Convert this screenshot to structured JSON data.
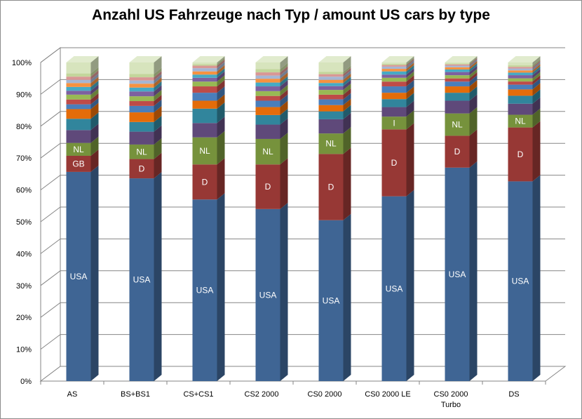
{
  "chart_data": {
    "type": "bar",
    "stacked": true,
    "percent_stacked": true,
    "three_d": true,
    "title": "Anzahl US Fahrzeuge nach Typ / amount US cars by type",
    "xlabel": "",
    "ylabel": "",
    "ylim": [
      0,
      100
    ],
    "yticks": [
      "0%",
      "10%",
      "20%",
      "30%",
      "40%",
      "50%",
      "60%",
      "70%",
      "80%",
      "90%",
      "100%"
    ],
    "grid": true,
    "legend": "none",
    "categories": [
      [
        "AS"
      ],
      [
        "BS+BS1"
      ],
      [
        "CS+CS1"
      ],
      [
        "CS2 2000"
      ],
      [
        "CS0 2000"
      ],
      [
        "CS0 2000 LE"
      ],
      [
        "CS0 2000",
        "Turbo"
      ],
      [
        "DS"
      ]
    ],
    "bars": [
      {
        "segments": [
          {
            "label": "USA",
            "value": 65,
            "color": "#3f6594"
          },
          {
            "label": "GB",
            "value": 5,
            "color": "#973835"
          },
          {
            "label": "NL",
            "value": 4,
            "color": "#76923c"
          },
          {
            "label": "",
            "value": 4,
            "color": "#5f497a"
          },
          {
            "label": "",
            "value": 3.5,
            "color": "#31859c"
          },
          {
            "label": "",
            "value": 3,
            "color": "#e46c0a"
          },
          {
            "label": "",
            "value": 1.5,
            "color": "#4a7ebb"
          },
          {
            "label": "",
            "value": 1.5,
            "color": "#be4b48"
          },
          {
            "label": "",
            "value": 1.5,
            "color": "#98b954"
          },
          {
            "label": "",
            "value": 1.2,
            "color": "#7d60a0"
          },
          {
            "label": "",
            "value": 1.2,
            "color": "#46aac5"
          },
          {
            "label": "",
            "value": 1.2,
            "color": "#f69240"
          },
          {
            "label": "",
            "value": 1.0,
            "color": "#a5b6d4"
          },
          {
            "label": "",
            "value": 1.0,
            "color": "#d99795"
          },
          {
            "label": "",
            "value": 1.0,
            "color": "#c3d69b"
          },
          {
            "label": "",
            "value": 3.4,
            "color": "#d7e4bd"
          }
        ]
      },
      {
        "segments": [
          {
            "label": "USA",
            "value": 63,
            "color": "#3f6594"
          },
          {
            "label": "D",
            "value": 6,
            "color": "#973835"
          },
          {
            "label": "NL",
            "value": 4.5,
            "color": "#76923c"
          },
          {
            "label": "",
            "value": 4,
            "color": "#5f497a"
          },
          {
            "label": "",
            "value": 3,
            "color": "#31859c"
          },
          {
            "label": "",
            "value": 3,
            "color": "#e46c0a"
          },
          {
            "label": "",
            "value": 2,
            "color": "#4a7ebb"
          },
          {
            "label": "",
            "value": 1.5,
            "color": "#be4b48"
          },
          {
            "label": "",
            "value": 1.5,
            "color": "#98b954"
          },
          {
            "label": "",
            "value": 1.5,
            "color": "#7d60a0"
          },
          {
            "label": "",
            "value": 1.2,
            "color": "#46aac5"
          },
          {
            "label": "",
            "value": 1.2,
            "color": "#f69240"
          },
          {
            "label": "",
            "value": 1.0,
            "color": "#a5b6d4"
          },
          {
            "label": "",
            "value": 1.0,
            "color": "#d99795"
          },
          {
            "label": "",
            "value": 1.0,
            "color": "#c3d69b"
          },
          {
            "label": "",
            "value": 3.6,
            "color": "#d7e4bd"
          }
        ]
      },
      {
        "segments": [
          {
            "label": "USA",
            "value": 57,
            "color": "#3f6594"
          },
          {
            "label": "D",
            "value": 11,
            "color": "#973835"
          },
          {
            "label": "NL",
            "value": 8.5,
            "color": "#76923c"
          },
          {
            "label": "",
            "value": 4.5,
            "color": "#5f497a"
          },
          {
            "label": "",
            "value": 4.5,
            "color": "#31859c"
          },
          {
            "label": "",
            "value": 2.5,
            "color": "#e46c0a"
          },
          {
            "label": "",
            "value": 2.5,
            "color": "#4a7ebb"
          },
          {
            "label": "",
            "value": 2,
            "color": "#be4b48"
          },
          {
            "label": "",
            "value": 1.5,
            "color": "#98b954"
          },
          {
            "label": "",
            "value": 1.2,
            "color": "#7d60a0"
          },
          {
            "label": "",
            "value": 1.0,
            "color": "#46aac5"
          },
          {
            "label": "",
            "value": 1.0,
            "color": "#f69240"
          },
          {
            "label": "",
            "value": 1.0,
            "color": "#a5b6d4"
          },
          {
            "label": "",
            "value": 0.8,
            "color": "#d99795"
          },
          {
            "label": "",
            "value": 0.5,
            "color": "#c3d69b"
          },
          {
            "label": "",
            "value": 0.5,
            "color": "#d7e4bd"
          }
        ]
      },
      {
        "segments": [
          {
            "label": "USA",
            "value": 54,
            "color": "#3f6594"
          },
          {
            "label": "D",
            "value": 14,
            "color": "#973835"
          },
          {
            "label": "NL",
            "value": 8,
            "color": "#76923c"
          },
          {
            "label": "",
            "value": 4.5,
            "color": "#5f497a"
          },
          {
            "label": "",
            "value": 3,
            "color": "#31859c"
          },
          {
            "label": "",
            "value": 2.5,
            "color": "#e46c0a"
          },
          {
            "label": "",
            "value": 2,
            "color": "#4a7ebb"
          },
          {
            "label": "",
            "value": 1.5,
            "color": "#be4b48"
          },
          {
            "label": "",
            "value": 1.5,
            "color": "#98b954"
          },
          {
            "label": "",
            "value": 1.5,
            "color": "#7d60a0"
          },
          {
            "label": "",
            "value": 1.2,
            "color": "#46aac5"
          },
          {
            "label": "",
            "value": 1.2,
            "color": "#f69240"
          },
          {
            "label": "",
            "value": 1.0,
            "color": "#a5b6d4"
          },
          {
            "label": "",
            "value": 1.0,
            "color": "#d99795"
          },
          {
            "label": "",
            "value": 1.0,
            "color": "#c3d69b"
          },
          {
            "label": "",
            "value": 2.1,
            "color": "#d7e4bd"
          }
        ]
      },
      {
        "segments": [
          {
            "label": "USA",
            "value": 51,
            "color": "#3f6594"
          },
          {
            "label": "D",
            "value": 21,
            "color": "#973835"
          },
          {
            "label": "NL",
            "value": 6.5,
            "color": "#76923c"
          },
          {
            "label": "",
            "value": 4.5,
            "color": "#5f497a"
          },
          {
            "label": "",
            "value": 2.5,
            "color": "#31859c"
          },
          {
            "label": "",
            "value": 2,
            "color": "#e46c0a"
          },
          {
            "label": "",
            "value": 1.8,
            "color": "#4a7ebb"
          },
          {
            "label": "",
            "value": 1.5,
            "color": "#be4b48"
          },
          {
            "label": "",
            "value": 1.5,
            "color": "#98b954"
          },
          {
            "label": "",
            "value": 1.2,
            "color": "#7d60a0"
          },
          {
            "label": "",
            "value": 1.0,
            "color": "#46aac5"
          },
          {
            "label": "",
            "value": 1.0,
            "color": "#f69240"
          },
          {
            "label": "",
            "value": 1.0,
            "color": "#a5b6d4"
          },
          {
            "label": "",
            "value": 0.8,
            "color": "#d99795"
          },
          {
            "label": "",
            "value": 0.7,
            "color": "#c3d69b"
          },
          {
            "label": "",
            "value": 3.0,
            "color": "#d7e4bd"
          }
        ]
      },
      {
        "segments": [
          {
            "label": "USA",
            "value": 58,
            "color": "#3f6594"
          },
          {
            "label": "D",
            "value": 21,
            "color": "#973835"
          },
          {
            "label": "I",
            "value": 4,
            "color": "#76923c"
          },
          {
            "label": "",
            "value": 3,
            "color": "#5f497a"
          },
          {
            "label": "",
            "value": 2.5,
            "color": "#31859c"
          },
          {
            "label": "",
            "value": 2,
            "color": "#e46c0a"
          },
          {
            "label": "",
            "value": 2,
            "color": "#4a7ebb"
          },
          {
            "label": "",
            "value": 1.5,
            "color": "#be4b48"
          },
          {
            "label": "",
            "value": 1.2,
            "color": "#98b954"
          },
          {
            "label": "",
            "value": 1.0,
            "color": "#7d60a0"
          },
          {
            "label": "",
            "value": 1.0,
            "color": "#46aac5"
          },
          {
            "label": "",
            "value": 0.8,
            "color": "#f69240"
          },
          {
            "label": "",
            "value": 0.7,
            "color": "#a5b6d4"
          },
          {
            "label": "",
            "value": 0.5,
            "color": "#d99795"
          },
          {
            "label": "",
            "value": 0.4,
            "color": "#c3d69b"
          },
          {
            "label": "",
            "value": 0.4,
            "color": "#d7e4bd"
          }
        ]
      },
      {
        "segments": [
          {
            "label": "USA",
            "value": 67,
            "color": "#3f6594"
          },
          {
            "label": "D",
            "value": 10,
            "color": "#973835"
          },
          {
            "label": "NL",
            "value": 7,
            "color": "#76923c"
          },
          {
            "label": "",
            "value": 4,
            "color": "#5f497a"
          },
          {
            "label": "",
            "value": 2.5,
            "color": "#31859c"
          },
          {
            "label": "",
            "value": 2,
            "color": "#e46c0a"
          },
          {
            "label": "",
            "value": 1.5,
            "color": "#4a7ebb"
          },
          {
            "label": "",
            "value": 1.0,
            "color": "#be4b48"
          },
          {
            "label": "",
            "value": 1.0,
            "color": "#98b954"
          },
          {
            "label": "",
            "value": 1.0,
            "color": "#7d60a0"
          },
          {
            "label": "",
            "value": 0.8,
            "color": "#46aac5"
          },
          {
            "label": "",
            "value": 0.7,
            "color": "#f69240"
          },
          {
            "label": "",
            "value": 0.5,
            "color": "#a5b6d4"
          },
          {
            "label": "",
            "value": 0.4,
            "color": "#d99795"
          },
          {
            "label": "",
            "value": 0.3,
            "color": "#c3d69b"
          },
          {
            "label": "",
            "value": 0.3,
            "color": "#d7e4bd"
          }
        ]
      },
      {
        "segments": [
          {
            "label": "USA",
            "value": 63,
            "color": "#3f6594"
          },
          {
            "label": "D",
            "value": 17,
            "color": "#973835"
          },
          {
            "label": "NL",
            "value": 4,
            "color": "#76923c"
          },
          {
            "label": "",
            "value": 3.5,
            "color": "#5f497a"
          },
          {
            "label": "",
            "value": 2.5,
            "color": "#31859c"
          },
          {
            "label": "",
            "value": 2,
            "color": "#e46c0a"
          },
          {
            "label": "",
            "value": 1.5,
            "color": "#4a7ebb"
          },
          {
            "label": "",
            "value": 1.0,
            "color": "#be4b48"
          },
          {
            "label": "",
            "value": 1.0,
            "color": "#98b954"
          },
          {
            "label": "",
            "value": 1.0,
            "color": "#7d60a0"
          },
          {
            "label": "",
            "value": 0.8,
            "color": "#46aac5"
          },
          {
            "label": "",
            "value": 0.7,
            "color": "#f69240"
          },
          {
            "label": "",
            "value": 0.6,
            "color": "#a5b6d4"
          },
          {
            "label": "",
            "value": 0.5,
            "color": "#d99795"
          },
          {
            "label": "",
            "value": 0.5,
            "color": "#c3d69b"
          },
          {
            "label": "",
            "value": 0.9,
            "color": "#d7e4bd"
          }
        ]
      }
    ]
  }
}
